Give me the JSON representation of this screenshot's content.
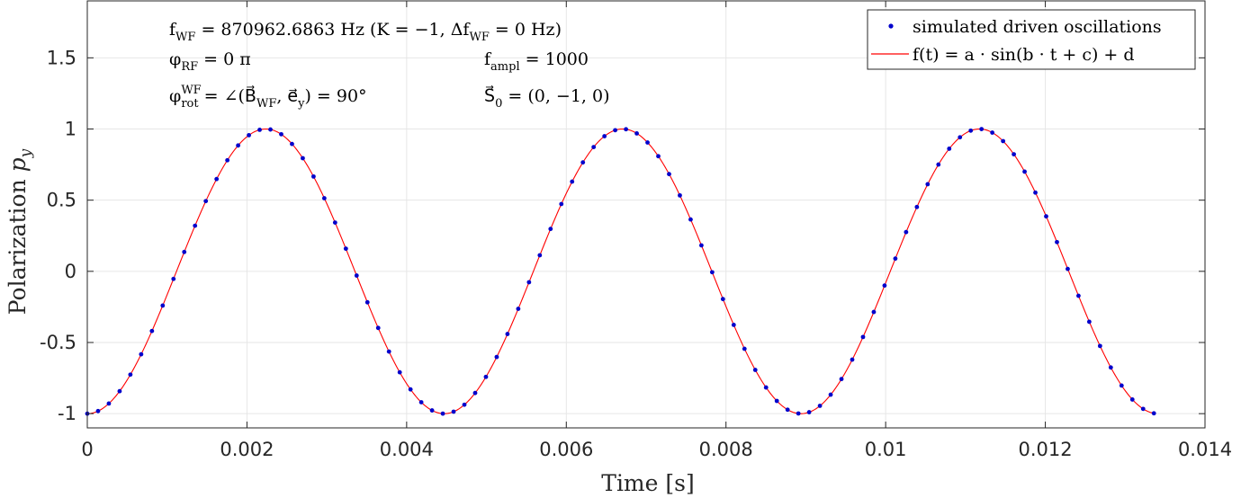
{
  "chart_data": {
    "type": "line",
    "xlabel": "Time [s]",
    "ylabel": "Polarization p_y",
    "xlim": [
      0,
      0.014
    ],
    "ylim": [
      -1.1,
      1.9
    ],
    "x_ticks": [
      0,
      0.002,
      0.004,
      0.006,
      0.008,
      0.01,
      0.012,
      0.014
    ],
    "x_tick_labels": [
      "0",
      "0.002",
      "0.004",
      "0.006",
      "0.008",
      "0.01",
      "0.012",
      "0.014"
    ],
    "y_ticks": [
      -1,
      -0.5,
      0,
      0.5,
      1,
      1.5
    ],
    "y_tick_labels": [
      "-1",
      "-0.5",
      "0",
      "0.5",
      "1",
      "1.5"
    ],
    "grid": true,
    "legend_position": "top-right",
    "series": [
      {
        "name": "simulated driven oscillations",
        "style": "markers",
        "color": "#0000cc",
        "t_start": 0,
        "t_end": 0.01336,
        "n_points": 100,
        "amplitude": 1,
        "period": 0.00447,
        "phase_form": "-cos",
        "offset": 0
      },
      {
        "name": "f(t) = a · sin(b · t + c) + d",
        "style": "line",
        "color": "#ff0000",
        "a": 1,
        "b": 1405.6,
        "c": -1.5708,
        "d": 0,
        "t_start": 0,
        "t_end": 0.01336
      }
    ],
    "annotations": [
      {
        "name": "f-wf",
        "parts": [
          [
            "f",
            ""
          ],
          [
            "WF",
            "sub"
          ],
          [
            " = 870962.6863 Hz (K = −1, Δf",
            ""
          ],
          [
            "WF",
            "sub"
          ],
          [
            " = 0 Hz)",
            ""
          ]
        ]
      },
      {
        "name": "phi-rf",
        "parts": [
          [
            "φ",
            ""
          ],
          [
            "RF",
            "sub"
          ],
          [
            " = 0 π",
            ""
          ]
        ]
      },
      {
        "name": "f-ampl",
        "parts": [
          [
            "f",
            ""
          ],
          [
            "ampl",
            "sub"
          ],
          [
            " = 1000",
            ""
          ]
        ]
      },
      {
        "name": "phi-rot",
        "parts": [
          [
            "φ",
            ""
          ],
          [
            "WF",
            "sup"
          ],
          [
            "rot",
            "sub"
          ],
          [
            " = ∠(B⃗",
            ""
          ],
          [
            "WF",
            "sub"
          ],
          [
            ", e⃗",
            ""
          ],
          [
            "y",
            "sub"
          ],
          [
            ") = 90°",
            ""
          ]
        ]
      },
      {
        "name": "s0",
        "parts": [
          [
            "S⃗",
            ""
          ],
          [
            "0",
            "sub"
          ],
          [
            " = (0, −1, 0)",
            ""
          ]
        ]
      }
    ]
  },
  "colors": {
    "marker": "#0000cc",
    "fit": "#ff0000",
    "grid": "#e6e6e6",
    "axis": "#262626"
  }
}
